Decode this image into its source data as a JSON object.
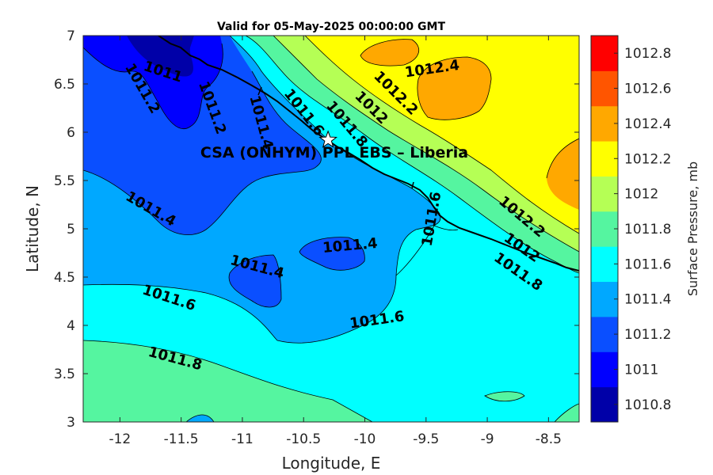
{
  "chart_data": {
    "type": "contour",
    "title": "Valid for 05-May-2025 00:00:00 GMT",
    "xlabel": "Longitude, E",
    "ylabel": "Latitude, N",
    "xlim": [
      -12.3,
      -8.25
    ],
    "ylim": [
      3,
      7
    ],
    "xticks": [
      -12,
      -11.5,
      -11,
      -10.5,
      -10,
      -9.5,
      -9,
      -8.5
    ],
    "yticks": [
      3,
      3.5,
      4,
      4.5,
      5,
      5.5,
      6,
      6.5,
      7
    ],
    "colorbar": {
      "label": "Surface Pressure, mb",
      "levels": [
        1010.8,
        1011,
        1011.2,
        1011.4,
        1011.6,
        1011.8,
        1012,
        1012.2,
        1012.4,
        1012.6,
        1012.8
      ],
      "colors": [
        "#0000a8",
        "#0000ff",
        "#0a4fff",
        "#00a8ff",
        "#00ffff",
        "#55f5a0",
        "#b5ff55",
        "#ffff00",
        "#ffa800",
        "#ff5500",
        "#ff0000"
      ]
    },
    "contour_labels": [
      {
        "text": "1011",
        "lon": -11.65,
        "lat": 6.62,
        "angle": 18
      },
      {
        "text": "1011.2",
        "lon": -11.82,
        "lat": 6.45,
        "angle": 60
      },
      {
        "text": "1011.2",
        "lon": -11.25,
        "lat": 6.25,
        "angle": 70
      },
      {
        "text": "1011.4",
        "lon": -10.85,
        "lat": 6.1,
        "angle": 75
      },
      {
        "text": "1011.6",
        "lon": -10.5,
        "lat": 6.2,
        "angle": 52
      },
      {
        "text": "1011.8",
        "lon": -10.15,
        "lat": 6.08,
        "angle": 50
      },
      {
        "text": "1012",
        "lon": -9.95,
        "lat": 6.25,
        "angle": 45
      },
      {
        "text": "1012.2",
        "lon": -9.75,
        "lat": 6.4,
        "angle": 45
      },
      {
        "text": "1012.4",
        "lon": -9.45,
        "lat": 6.65,
        "angle": -8
      },
      {
        "text": "1011.4",
        "lon": -11.75,
        "lat": 5.2,
        "angle": 30
      },
      {
        "text": "1011.4",
        "lon": -10.88,
        "lat": 4.6,
        "angle": 15
      },
      {
        "text": "1011.4",
        "lon": -10.12,
        "lat": 4.82,
        "angle": -5
      },
      {
        "text": "1011.6",
        "lon": -9.45,
        "lat": 5.1,
        "angle": -80
      },
      {
        "text": "1012.2",
        "lon": -8.72,
        "lat": 5.12,
        "angle": 40
      },
      {
        "text": "1012",
        "lon": -8.72,
        "lat": 4.8,
        "angle": 35
      },
      {
        "text": "1011.8",
        "lon": -8.75,
        "lat": 4.55,
        "angle": 35
      },
      {
        "text": "1011.6",
        "lon": -11.6,
        "lat": 4.28,
        "angle": 18
      },
      {
        "text": "1011.6",
        "lon": -9.9,
        "lat": 4.05,
        "angle": -8
      },
      {
        "text": "1011.8",
        "lon": -11.55,
        "lat": 3.65,
        "angle": 15
      }
    ],
    "station": {
      "label": "CSA (ONHYM) PPL EBS  – Liberia",
      "lon": -10.3,
      "lat": 5.92
    }
  }
}
